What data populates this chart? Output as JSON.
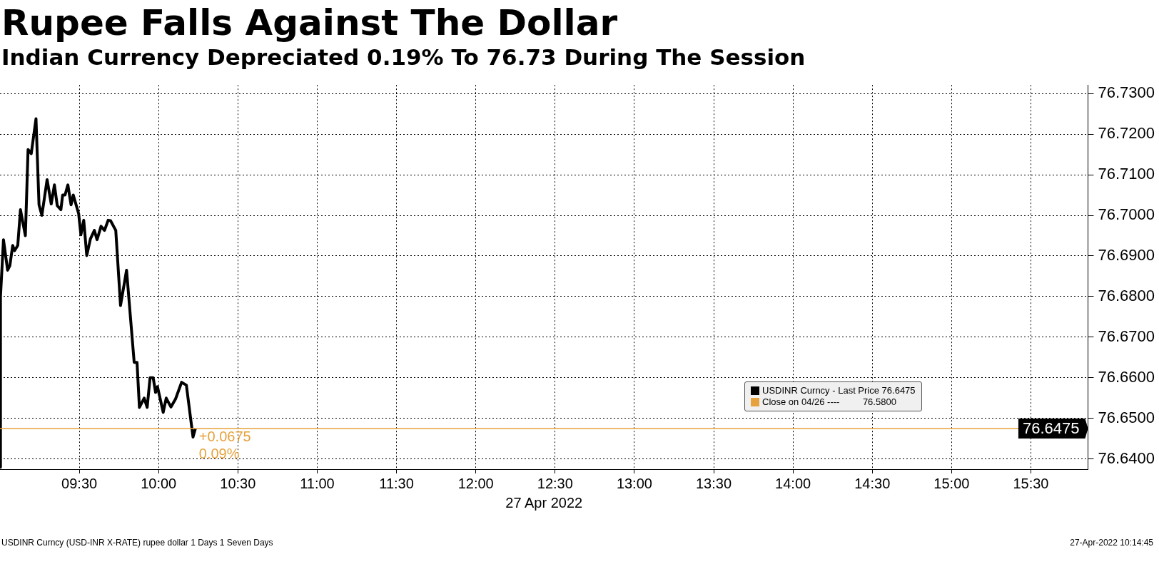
{
  "chart_data": {
    "type": "line",
    "title": "Rupee Falls Against The Dollar",
    "subtitle": "Indian Currency Depreciated 0.19% To 76.73 During The Session",
    "xlabel": "27 Apr 2022",
    "x": [
      9.0,
      9.003,
      9.022,
      9.048,
      9.062,
      9.08,
      9.092,
      9.112,
      9.129,
      9.16,
      9.177,
      9.197,
      9.227,
      9.246,
      9.264,
      9.297,
      9.323,
      9.343,
      9.361,
      9.384,
      9.395,
      9.41,
      9.428,
      9.448,
      9.462,
      9.496,
      9.51,
      9.528,
      9.547,
      9.57,
      9.595,
      9.612,
      9.637,
      9.659,
      9.682,
      9.697,
      9.73,
      9.76,
      9.798,
      9.846,
      9.864,
      9.879,
      9.909,
      9.928,
      9.946,
      9.966,
      9.981,
      9.993,
      10.029,
      10.048,
      10.078,
      10.107,
      10.145,
      10.175,
      10.217,
      10.232
    ],
    "series": [
      {
        "name": "USDINR Curncy - Last Price 76.6475",
        "color": "#000000",
        "values": [
          76.638,
          76.68,
          76.694,
          76.6865,
          76.6876,
          76.6926,
          76.6913,
          76.6926,
          76.7014,
          76.695,
          76.7162,
          76.7152,
          76.7238,
          76.7026,
          76.7,
          76.7088,
          76.7028,
          76.7075,
          76.7024,
          76.7014,
          76.705,
          76.705,
          76.7075,
          76.7026,
          76.705,
          76.7004,
          76.6952,
          76.6988,
          76.6901,
          76.6942,
          76.6963,
          76.694,
          76.6973,
          76.6963,
          76.6988,
          76.6987,
          76.6963,
          76.6778,
          76.6865,
          76.6638,
          76.6638,
          76.6527,
          76.655,
          76.6527,
          76.66,
          76.66,
          76.6564,
          76.6578,
          76.6515,
          76.655,
          76.6528,
          76.6548,
          76.6589,
          76.6582,
          76.6454,
          76.6475
        ]
      }
    ],
    "xlim": [
      9.0,
      15.86
    ],
    "xticks": [
      {
        "value": 9.5,
        "label": "09:30"
      },
      {
        "value": 10,
        "label": "10:00"
      },
      {
        "value": 10.5,
        "label": "10:30"
      },
      {
        "value": 11,
        "label": "11:00"
      },
      {
        "value": 11.5,
        "label": "11:30"
      },
      {
        "value": 12,
        "label": "12:00"
      },
      {
        "value": 12.5,
        "label": "12:30"
      },
      {
        "value": 13,
        "label": "13:00"
      },
      {
        "value": 13.5,
        "label": "13:30"
      },
      {
        "value": 14,
        "label": "14:00"
      },
      {
        "value": 14.5,
        "label": "14:30"
      },
      {
        "value": 15,
        "label": "15:00"
      },
      {
        "value": 15.5,
        "label": "15:30"
      }
    ],
    "ylim": [
      76.6375,
      76.7321
    ],
    "yticks": [
      {
        "value": 76.64,
        "label": "76.6400"
      },
      {
        "value": 76.65,
        "label": "76.6500"
      },
      {
        "value": 76.66,
        "label": "76.6600"
      },
      {
        "value": 76.67,
        "label": "76.6700"
      },
      {
        "value": 76.68,
        "label": "76.6800"
      },
      {
        "value": 76.69,
        "label": "76.6900"
      },
      {
        "value": 76.7,
        "label": "76.7000"
      },
      {
        "value": 76.71,
        "label": "76.7100"
      },
      {
        "value": 76.72,
        "label": "76.7200"
      },
      {
        "value": 76.73,
        "label": "76.7300"
      }
    ],
    "ref_lines": [
      {
        "axis": "y",
        "value": 76.6475,
        "label": "76.6475",
        "color": "#e6a23c"
      }
    ],
    "annotations": [
      {
        "text": "+0.0675",
        "x": 10.232,
        "y": 76.6475
      },
      {
        "text": "0.09%",
        "x": 10.232,
        "y": 76.6475
      },
      "Close on 04/26 ----         76.5800",
      "USDINR Curncy (USD-INR X-RATE) rupee dollar 1 Days 1 Seven Days",
      "27-Apr-2022 10:14:45"
    ],
    "grid": true,
    "legend": "bottom right",
    "marker": "none",
    "line_style": "solid"
  }
}
